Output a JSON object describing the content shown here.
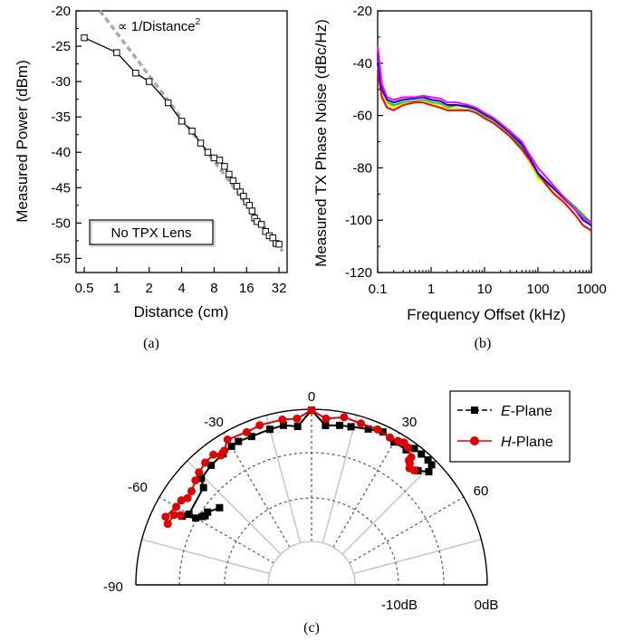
{
  "chart_data": [
    {
      "id": "a",
      "type": "line",
      "caption": "(a)",
      "xlabel": "Distance (cm)",
      "ylabel": "Measured Power (dBm)",
      "xscale": "log2",
      "xlim": [
        0.42,
        38
      ],
      "ylim": [
        -57,
        -20
      ],
      "xticks": [
        0.5,
        1,
        2,
        4,
        8,
        16,
        32
      ],
      "xtick_labels": [
        "0.5",
        "1",
        "2",
        "4",
        "8",
        "16",
        "32"
      ],
      "yticks": [
        -20,
        -25,
        -30,
        -35,
        -40,
        -45,
        -50,
        -55
      ],
      "ytick_labels": [
        "-20",
        "-25",
        "-30",
        "-35",
        "-40",
        "-45",
        "-50",
        "-55"
      ],
      "annotation": "∝ 1/Distance",
      "annotation_sup": "2",
      "box_label": "No TPX Lens",
      "series": [
        {
          "role": "measured",
          "style": "solid-open-square",
          "color": "#000000",
          "x": [
            0.5,
            1.0,
            1.5,
            2.0,
            3.0,
            4.0,
            5.0,
            6.0,
            7.0,
            8.0,
            9.0,
            10.0,
            11.0,
            12.0,
            13.0,
            14.0,
            15.0,
            16.0,
            17.0,
            18.0,
            19.0,
            20.0,
            22.0,
            24.0,
            26.0,
            28.0,
            30.0,
            32.0
          ],
          "y": [
            -23.8,
            -25.9,
            -28.8,
            -30.0,
            -33.0,
            -35.6,
            -37.0,
            -38.7,
            -40.0,
            -40.8,
            -41.1,
            -42.0,
            -43.1,
            -44.0,
            -44.8,
            -45.6,
            -46.2,
            -47.0,
            -47.5,
            -48.3,
            -49.3,
            -49.8,
            -50.2,
            -51.2,
            -51.8,
            -52.1,
            -52.9,
            -53.0
          ]
        },
        {
          "role": "fit",
          "style": "dashed",
          "color": "#aaaaaa",
          "x": [
            0.7,
            34.5
          ],
          "y": [
            -20.0,
            -54.0
          ]
        }
      ],
      "grid": false
    },
    {
      "id": "b",
      "type": "line",
      "caption": "(b)",
      "xlabel": "Frequency Offset (kHz)",
      "ylabel": "Measured TX Phase Noise (dBc/Hz)",
      "xscale": "log10",
      "xlim": [
        0.1,
        1000
      ],
      "ylim": [
        -120,
        -20
      ],
      "xticks": [
        0.1,
        1,
        10,
        100,
        1000
      ],
      "xtick_labels": [
        "0.1",
        "1",
        "10",
        "100",
        "1000"
      ],
      "yticks": [
        -20,
        -40,
        -60,
        -80,
        -100,
        -120
      ],
      "ytick_labels": [
        "-20",
        "-40",
        "-60",
        "-80",
        "-100",
        "-120"
      ],
      "series": [
        {
          "color": "#00cc00",
          "x": [
            0.1,
            0.12,
            0.15,
            0.2,
            0.3,
            0.5,
            0.7,
            1,
            1.5,
            2,
            3,
            5,
            7,
            10,
            15,
            20,
            30,
            50,
            70,
            100,
            150,
            200,
            300,
            500,
            700,
            1000
          ],
          "y": [
            -40,
            -50,
            -55,
            -56,
            -55,
            -54.5,
            -54,
            -55,
            -55.5,
            -57,
            -56,
            -57,
            -58,
            -60,
            -62,
            -64,
            -67,
            -72,
            -77,
            -83,
            -86,
            -88,
            -91,
            -95,
            -98,
            -101
          ]
        },
        {
          "color": "#eeee00",
          "x": [
            0.1,
            0.12,
            0.15,
            0.2,
            0.3,
            0.5,
            0.7,
            1,
            1.5,
            2,
            3,
            5,
            7,
            10,
            15,
            20,
            30,
            50,
            70,
            100,
            150,
            200,
            300,
            500,
            700,
            1000
          ],
          "y": [
            -41,
            -51,
            -55.5,
            -57,
            -55.5,
            -55,
            -54.5,
            -55.5,
            -56,
            -57.5,
            -57,
            -58,
            -59,
            -61,
            -63,
            -65,
            -68,
            -73,
            -78,
            -84,
            -87,
            -89,
            -92,
            -96,
            -99,
            -102
          ]
        },
        {
          "color": "#ff0000",
          "x": [
            0.1,
            0.12,
            0.15,
            0.2,
            0.3,
            0.5,
            0.7,
            1,
            1.5,
            2,
            3,
            5,
            7,
            10,
            15,
            20,
            30,
            50,
            70,
            100,
            150,
            200,
            300,
            500,
            700,
            1000
          ],
          "y": [
            -43,
            -53,
            -57,
            -58,
            -56,
            -55,
            -55,
            -56,
            -57,
            -58,
            -58,
            -58,
            -59,
            -61,
            -63,
            -65,
            -68,
            -73,
            -77,
            -82,
            -87,
            -90,
            -93,
            -98,
            -102,
            -104
          ]
        },
        {
          "color": "#0000ff",
          "x": [
            0.1,
            0.12,
            0.15,
            0.2,
            0.3,
            0.5,
            0.7,
            1,
            1.5,
            2,
            3,
            5,
            7,
            10,
            15,
            20,
            30,
            50,
            70,
            100,
            150,
            200,
            300,
            500,
            700,
            1000
          ],
          "y": [
            -40,
            -50,
            -54,
            -55,
            -54,
            -53.5,
            -53,
            -54,
            -54.5,
            -56,
            -56,
            -56.5,
            -57.5,
            -59.5,
            -61.5,
            -63.5,
            -66.5,
            -71,
            -76,
            -82,
            -85.5,
            -88,
            -91.5,
            -96,
            -100,
            -102
          ]
        },
        {
          "color": "#ff00ff",
          "x": [
            0.1,
            0.12,
            0.15,
            0.2,
            0.3,
            0.5,
            0.7,
            1,
            1.5,
            2,
            3,
            5,
            7,
            10,
            15,
            20,
            30,
            50,
            70,
            100,
            150,
            200,
            300,
            500,
            700,
            1000
          ],
          "y": [
            -33,
            -48,
            -53,
            -54,
            -53,
            -53,
            -52.5,
            -53,
            -53.5,
            -55,
            -55,
            -56,
            -57,
            -59,
            -61,
            -63,
            -66,
            -70,
            -75,
            -80,
            -84,
            -87,
            -91,
            -96,
            -99,
            -101
          ]
        }
      ],
      "grid": false
    },
    {
      "id": "c",
      "type": "polar",
      "caption": "(c)",
      "angle_range": [
        -90,
        90
      ],
      "angle_tick_labels": [
        {
          "angle": 0,
          "text": "0"
        },
        {
          "angle": -30,
          "text": "-30"
        },
        {
          "angle": 30,
          "text": "30"
        },
        {
          "angle": -60,
          "text": "-60"
        },
        {
          "angle": 60,
          "text": "60"
        },
        {
          "angle": -90,
          "text": "-90"
        }
      ],
      "radial_labels": [
        "-10dB",
        "0dB"
      ],
      "legend_position": "top-right",
      "series": [
        {
          "name_prefix": "E",
          "name_suffix": "-Plane",
          "color": "#000000",
          "marker": "square",
          "angle": [
            -50,
            -55,
            -57,
            -58,
            -60,
            -62,
            -60,
            -48,
            -46,
            -40,
            -34,
            -30,
            -27,
            -22,
            -15,
            -10,
            -5,
            0,
            5,
            10,
            14,
            20,
            25,
            30,
            35,
            37,
            40,
            43,
            45,
            46,
            43,
            42
          ],
          "r_db": [
            -5.7,
            -5.0,
            -5.0,
            -4.8,
            -4.3,
            -3.0,
            -3.5,
            -3.1,
            -2.3,
            -2.0,
            -1.8,
            -1.6,
            -1.5,
            -1.6,
            -1.5,
            -1.4,
            -1.7,
            -0.1,
            -1.6,
            -1.4,
            -1.3,
            -1.0,
            -0.7,
            -1.1,
            -1.1,
            -0.5,
            -0.5,
            -0.5,
            -0.6,
            -1.3,
            -2.0,
            -2.2
          ]
        },
        {
          "name_prefix": "H",
          "name_suffix": "-Plane",
          "color": "#e00000",
          "marker": "circle",
          "angle": [
            -62,
            -63,
            -67,
            -65,
            -60,
            -57,
            -55,
            -52,
            -48,
            -45,
            -41,
            -37,
            -35,
            -33,
            -30,
            -23,
            -18,
            -10,
            -5,
            0,
            5,
            11,
            17,
            23,
            28,
            31,
            33,
            35,
            38,
            38,
            39,
            40,
            42
          ],
          "r_db": [
            -2.8,
            -2.2,
            -2.0,
            -1.5,
            -2.0,
            -2.1,
            -2.5,
            -2.4,
            -2.0,
            -1.7,
            -1.4,
            -1.3,
            -1.8,
            -1.6,
            -0.8,
            -1.0,
            -0.8,
            -0.8,
            -0.9,
            -0.1,
            -0.9,
            -0.5,
            -0.7,
            -0.7,
            -0.9,
            -0.8,
            -0.6,
            -0.8,
            -1.4,
            -1.8,
            -2.0,
            -2.4,
            -2.2
          ]
        }
      ]
    }
  ]
}
